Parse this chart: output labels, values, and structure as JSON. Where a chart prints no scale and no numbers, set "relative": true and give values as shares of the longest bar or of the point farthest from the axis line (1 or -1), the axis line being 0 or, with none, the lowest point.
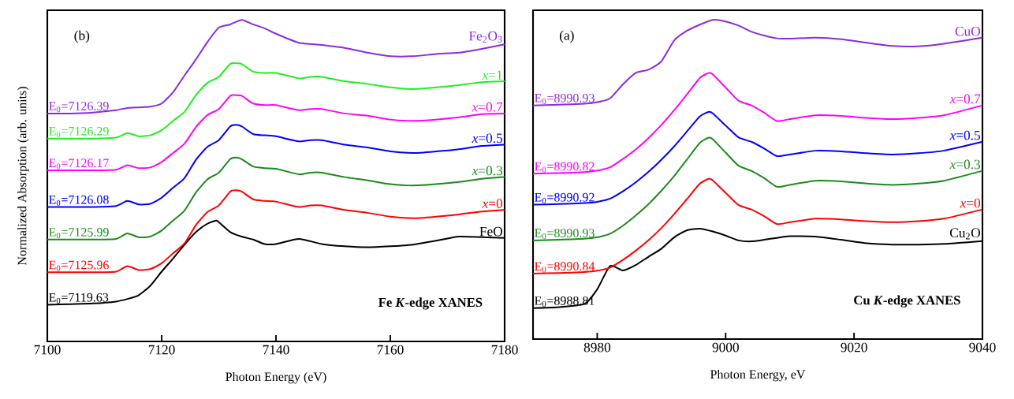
{
  "chart_data": [
    {
      "type": "line",
      "xlabel": "Photon Energy (eV)",
      "ylabel": "Normalized Absorption (arb. units)",
      "relative": true,
      "xlim": [
        7100,
        7180
      ],
      "xticks": [
        7100,
        7120,
        7140,
        7160,
        7180
      ],
      "series": [
        {
          "name": "FeO",
          "color": "#000000",
          "x": [
            7100,
            7104,
            7108,
            7112,
            7114,
            7116,
            7118,
            7120,
            7122,
            7124,
            7126,
            7128,
            7129.5,
            7130,
            7132,
            7134,
            7136,
            7138,
            7140,
            7144,
            7148,
            7152,
            7156,
            7160,
            7164,
            7168,
            7172,
            7176,
            7180
          ],
          "values": [
            0.114,
            0.116,
            0.118,
            0.124,
            0.132,
            0.144,
            0.173,
            0.217,
            0.258,
            0.301,
            0.34,
            0.366,
            0.376,
            0.371,
            0.34,
            0.326,
            0.317,
            0.303,
            0.303,
            0.319,
            0.303,
            0.296,
            0.293,
            0.296,
            0.301,
            0.313,
            0.326,
            0.324,
            0.322
          ]
        },
        {
          "name": "*x*=0",
          "color": "#ff0000",
          "x": [
            7100,
            7104,
            7108,
            7112,
            7114,
            7116,
            7118,
            7120,
            7122,
            7124,
            7126,
            7128,
            7130,
            7132,
            7133,
            7134,
            7136,
            7138,
            7140,
            7144,
            7146,
            7148,
            7152,
            7156,
            7160,
            7164,
            7168,
            7172,
            7176,
            7180
          ],
          "values": [
            0.215,
            0.215,
            0.215,
            0.217,
            0.234,
            0.222,
            0.225,
            0.243,
            0.274,
            0.305,
            0.362,
            0.402,
            0.423,
            0.466,
            0.47,
            0.466,
            0.442,
            0.437,
            0.435,
            0.418,
            0.423,
            0.423,
            0.409,
            0.4,
            0.388,
            0.383,
            0.388,
            0.395,
            0.404,
            0.409
          ]
        },
        {
          "name": "*x*=0.3",
          "color": "#1a8c1a",
          "x": [
            7100,
            7104,
            7108,
            7112,
            7114,
            7116,
            7118,
            7120,
            7122,
            7124,
            7126,
            7128,
            7130,
            7132,
            7133,
            7134,
            7136,
            7138,
            7140,
            7144,
            7146,
            7148,
            7152,
            7156,
            7160,
            7164,
            7168,
            7172,
            7176,
            7180
          ],
          "values": [
            0.317,
            0.317,
            0.317,
            0.319,
            0.336,
            0.324,
            0.326,
            0.345,
            0.376,
            0.407,
            0.463,
            0.504,
            0.525,
            0.567,
            0.572,
            0.567,
            0.544,
            0.539,
            0.537,
            0.52,
            0.525,
            0.525,
            0.511,
            0.501,
            0.489,
            0.485,
            0.489,
            0.496,
            0.506,
            0.511
          ]
        },
        {
          "name": "*x*=0.5",
          "color": "#0000ff",
          "x": [
            7100,
            7104,
            7108,
            7112,
            7114,
            7116,
            7118,
            7120,
            7122,
            7124,
            7126,
            7128,
            7130,
            7132,
            7133,
            7134,
            7136,
            7138,
            7140,
            7144,
            7146,
            7148,
            7152,
            7156,
            7160,
            7164,
            7168,
            7172,
            7176,
            7180
          ],
          "values": [
            0.418,
            0.418,
            0.418,
            0.421,
            0.437,
            0.426,
            0.428,
            0.447,
            0.478,
            0.508,
            0.565,
            0.605,
            0.626,
            0.669,
            0.674,
            0.669,
            0.645,
            0.641,
            0.638,
            0.622,
            0.626,
            0.626,
            0.612,
            0.603,
            0.591,
            0.586,
            0.591,
            0.598,
            0.608,
            0.612
          ]
        },
        {
          "name": "*x*=0.7",
          "color": "#ff00ff",
          "x": [
            7100,
            7104,
            7108,
            7112,
            7114,
            7116,
            7118,
            7120,
            7122,
            7124,
            7126,
            7128,
            7130,
            7132,
            7133,
            7134,
            7136,
            7138,
            7140,
            7144,
            7146,
            7148,
            7152,
            7156,
            7160,
            7164,
            7168,
            7172,
            7176,
            7180
          ],
          "values": [
            0.532,
            0.532,
            0.532,
            0.534,
            0.548,
            0.539,
            0.541,
            0.558,
            0.586,
            0.615,
            0.667,
            0.704,
            0.723,
            0.764,
            0.766,
            0.764,
            0.74,
            0.735,
            0.735,
            0.719,
            0.723,
            0.723,
            0.709,
            0.702,
            0.69,
            0.686,
            0.69,
            0.697,
            0.707,
            0.709
          ]
        },
        {
          "name": "*x*=1",
          "color": "#1ef01e",
          "x": [
            7100,
            7104,
            7108,
            7112,
            7114,
            7116,
            7118,
            7120,
            7122,
            7124,
            7126,
            7128,
            7130,
            7132,
            7133,
            7134,
            7136,
            7138,
            7140,
            7144,
            7146,
            7148,
            7152,
            7156,
            7160,
            7164,
            7168,
            7172,
            7176,
            7180
          ],
          "values": [
            0.631,
            0.631,
            0.631,
            0.634,
            0.648,
            0.638,
            0.641,
            0.657,
            0.686,
            0.714,
            0.766,
            0.804,
            0.823,
            0.863,
            0.865,
            0.863,
            0.839,
            0.835,
            0.835,
            0.818,
            0.823,
            0.823,
            0.809,
            0.801,
            0.79,
            0.785,
            0.79,
            0.797,
            0.806,
            0.809
          ]
        },
        {
          "name": "Fe$_{2}$O$_{3}$",
          "color": "#8a2be2",
          "x": [
            7100,
            7104,
            7108,
            7112,
            7114,
            7116,
            7118,
            7120,
            7122,
            7124,
            7126,
            7128,
            7130,
            7132,
            7134,
            7136,
            7138,
            7140,
            7144,
            7148,
            7152,
            7156,
            7160,
            7164,
            7168,
            7172,
            7176,
            7180
          ],
          "values": [
            0.709,
            0.709,
            0.712,
            0.719,
            0.726,
            0.728,
            0.73,
            0.74,
            0.775,
            0.827,
            0.877,
            0.931,
            0.976,
            0.986,
            1.0,
            0.986,
            0.974,
            0.957,
            0.929,
            0.922,
            0.913,
            0.898,
            0.887,
            0.887,
            0.894,
            0.898,
            0.91,
            0.924
          ]
        }
      ],
      "annotations": [
        "(b)",
        "Fe *K*-edge XANES",
        {
          "text": "E$_{0}$=7119.63",
          "y": 0.114
        },
        {
          "text": "E$_{0}$=7125.96",
          "y": 0.215
        },
        {
          "text": "E$_{0}$=7125.99",
          "y": 0.317
        },
        {
          "text": "E$_{0}$=7126.08",
          "y": 0.418
        },
        {
          "text": "E$_{0}$=7126.17",
          "y": 0.532
        },
        {
          "text": "E$_{0}$=7126.29",
          "y": 0.631
        },
        {
          "text": "E$_{0}$=7126.39",
          "y": 0.709
        }
      ]
    },
    {
      "type": "line",
      "xlabel": "Photon Energy, eV",
      "relative": true,
      "xlim": [
        8970,
        9040
      ],
      "xticks": [
        8980,
        9000,
        9020,
        9040
      ],
      "series": [
        {
          "name": "Cu$_{2}$O",
          "color": "#000000",
          "x": [
            8970,
            8974,
            8978,
            8980,
            8982,
            8984,
            8986,
            8988,
            8990,
            8992,
            8994,
            8996,
            8998,
            9000,
            9002,
            9004,
            9006,
            9008,
            9010,
            9014,
            9018,
            9022,
            9026,
            9030,
            9034,
            9040
          ],
          "values": [
            0.097,
            0.1,
            0.11,
            0.156,
            0.229,
            0.215,
            0.232,
            0.258,
            0.283,
            0.319,
            0.341,
            0.346,
            0.337,
            0.324,
            0.309,
            0.306,
            0.311,
            0.317,
            0.322,
            0.321,
            0.311,
            0.3,
            0.296,
            0.296,
            0.298,
            0.307
          ]
        },
        {
          "name": "*x*=0",
          "color": "#ff0000",
          "x": [
            8970,
            8974,
            8978,
            8980,
            8982,
            8984,
            8986,
            8988,
            8990,
            8992,
            8994,
            8996,
            8997.4,
            8998,
            9000,
            9002,
            9004,
            9006,
            9008,
            9010,
            9014,
            9018,
            9022,
            9026,
            9030,
            9034,
            9040
          ],
          "values": [
            0.205,
            0.207,
            0.21,
            0.214,
            0.224,
            0.248,
            0.277,
            0.31,
            0.348,
            0.392,
            0.439,
            0.487,
            0.502,
            0.497,
            0.458,
            0.42,
            0.406,
            0.385,
            0.36,
            0.366,
            0.377,
            0.375,
            0.369,
            0.366,
            0.369,
            0.377,
            0.406
          ]
        },
        {
          "name": "*x*=0.3",
          "color": "#1a8c1a",
          "x": [
            8970,
            8974,
            8978,
            8980,
            8982,
            8984,
            8986,
            8988,
            8990,
            8992,
            8994,
            8996,
            8997.4,
            8998,
            9000,
            9002,
            9004,
            9006,
            9008,
            9010,
            9014,
            9018,
            9022,
            9026,
            9030,
            9034,
            9040
          ],
          "values": [
            0.309,
            0.311,
            0.314,
            0.319,
            0.33,
            0.355,
            0.387,
            0.423,
            0.465,
            0.511,
            0.563,
            0.615,
            0.631,
            0.626,
            0.584,
            0.543,
            0.527,
            0.504,
            0.477,
            0.483,
            0.496,
            0.494,
            0.487,
            0.483,
            0.487,
            0.496,
            0.527
          ]
        },
        {
          "name": "*x*=0.5",
          "color": "#0000ff",
          "x": [
            8970,
            8974,
            8978,
            8980,
            8982,
            8984,
            8986,
            8988,
            8990,
            8992,
            8994,
            8996,
            8997.4,
            8998,
            9000,
            9002,
            9004,
            9006,
            9008,
            9010,
            9014,
            9018,
            9022,
            9026,
            9030,
            9034,
            9040
          ],
          "values": [
            0.421,
            0.423,
            0.426,
            0.43,
            0.44,
            0.463,
            0.491,
            0.524,
            0.562,
            0.604,
            0.651,
            0.698,
            0.712,
            0.707,
            0.669,
            0.632,
            0.618,
            0.597,
            0.573,
            0.578,
            0.59,
            0.588,
            0.582,
            0.578,
            0.582,
            0.59,
            0.618
          ]
        },
        {
          "name": "*x*=0.7",
          "color": "#ff00ff",
          "x": [
            8970,
            8974,
            8978,
            8980,
            8982,
            8984,
            8986,
            8988,
            8990,
            8992,
            8994,
            8996,
            8997.4,
            8998,
            9000,
            9002,
            9004,
            9006,
            9008,
            9010,
            9014,
            9018,
            9022,
            9026,
            9030,
            9034,
            9040
          ],
          "values": [
            0.518,
            0.52,
            0.523,
            0.528,
            0.538,
            0.564,
            0.594,
            0.63,
            0.671,
            0.717,
            0.767,
            0.818,
            0.834,
            0.829,
            0.788,
            0.747,
            0.732,
            0.709,
            0.683,
            0.689,
            0.701,
            0.699,
            0.693,
            0.689,
            0.693,
            0.701,
            0.732
          ]
        },
        {
          "name": "CuO",
          "color": "#8a2be2",
          "x": [
            8970,
            8974,
            8978,
            8980,
            8982,
            8984,
            8986,
            8988,
            8990,
            8992,
            8994,
            8996,
            8998,
            9000,
            9002,
            9004,
            9006,
            9008,
            9010,
            9014,
            9018,
            9022,
            9026,
            9030,
            9034,
            9040
          ],
          "values": [
            0.732,
            0.734,
            0.737,
            0.742,
            0.754,
            0.798,
            0.834,
            0.844,
            0.87,
            0.936,
            0.966,
            0.985,
            1.0,
            0.995,
            0.982,
            0.963,
            0.951,
            0.942,
            0.941,
            0.944,
            0.939,
            0.928,
            0.918,
            0.917,
            0.925,
            0.944
          ]
        }
      ],
      "annotations": [
        "(a)",
        "Cu *K*-edge XANES",
        {
          "text": "E$_{0}$=8988.81",
          "y": 0.097
        },
        {
          "text": "E$_{0}$=8990.84",
          "y": 0.205
        },
        {
          "text": "E$_{0}$=8990.93",
          "y": 0.309
        },
        {
          "text": "E$_{0}$=8990.92",
          "y": 0.421
        },
        {
          "text": "E$_{0}$=8990.82",
          "y": 0.518
        },
        {
          "text": "E$_{0}$=8990.93",
          "y": 0.732
        }
      ]
    }
  ]
}
